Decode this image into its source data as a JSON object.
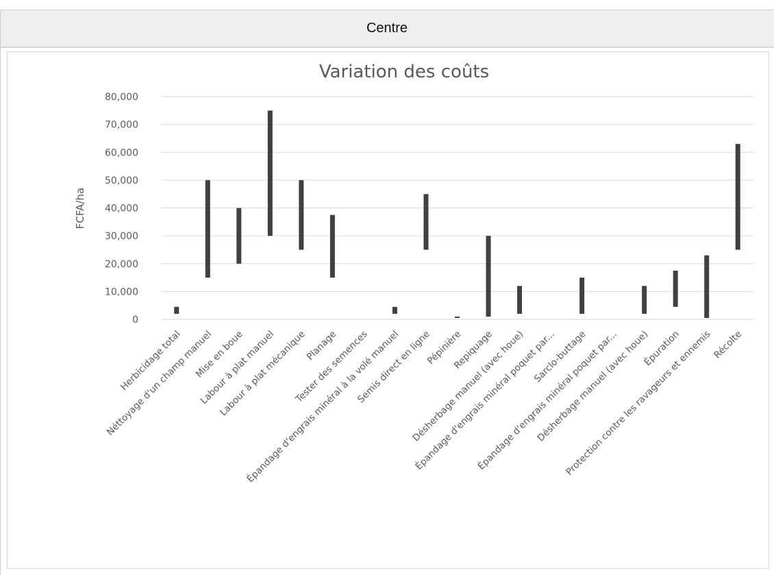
{
  "header": {
    "title": "Centre"
  },
  "chart_data": {
    "type": "floating_bar",
    "title": "Variation des coûts",
    "xlabel": "",
    "ylabel": "FCFA/ha",
    "ylim": [
      0,
      80000
    ],
    "grid": true,
    "legend": "none",
    "ytick_values": [
      0,
      10000,
      20000,
      30000,
      40000,
      50000,
      60000,
      70000,
      80000
    ],
    "ytick_labels": [
      "0",
      "10,000",
      "20,000",
      "30,000",
      "40,000",
      "50,000",
      "60,000",
      "70,000",
      "80,000"
    ],
    "categories": [
      "Herbicidage total",
      "Néttoyage d'un champ manuel",
      "Mise en boue",
      "Labour à plat manuel",
      "Labour à plat mécanique",
      "Planage",
      "Tester des semences",
      "Épandage d'engrais minéral à la volé manuel",
      "Semis direct en ligne",
      "Pépinière",
      "Repiquage",
      "Désherbage manuel (avec houe)",
      "Épandage d'engrais minéral poquet par...",
      "Sarclo-buttage",
      "Épandage d'engrais minéral poquet par...",
      "Désherbage manuel (avec houe)",
      "Épuration",
      "Protection contre les ravageurs et ennemis",
      "Récolte"
    ],
    "series": [
      {
        "low": [
          2000,
          15000,
          20000,
          30000,
          25000,
          15000,
          null,
          2000,
          25000,
          500,
          1000,
          2000,
          null,
          2000,
          null,
          2000,
          4500,
          500,
          25000
        ],
        "high": [
          4500,
          50000,
          40000,
          75000,
          50000,
          37500,
          null,
          4500,
          45000,
          1000,
          30000,
          12000,
          null,
          15000,
          null,
          12000,
          17500,
          23000,
          63000
        ]
      }
    ],
    "colors": {
      "bar": "#404040",
      "grid": "#d9d9d9",
      "text": "#595959"
    }
  }
}
